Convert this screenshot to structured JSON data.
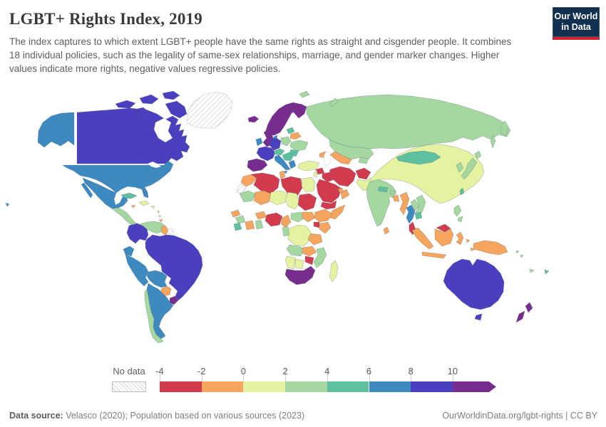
{
  "header": {
    "title": "LGBT+ Rights Index, 2019",
    "subtitle": "The index captures to which extent LGBT+ people have the same rights as straight and cisgender people. It combines 18 individual policies, such as the legality of same-sex relationships, marriage, and gender marker changes. Higher values indicate more rights, negative values regressive policies."
  },
  "logo": {
    "line1": "Our World",
    "line2": "in Data",
    "bg_color": "#12304f",
    "bar_color": "#d0232a"
  },
  "footer": {
    "source_label": "Data source:",
    "source_text": " Velasco (2020); Population based on various sources (2023)",
    "right_text": "OurWorldinData.org/lgbt-rights | CC BY"
  },
  "chart_data": {
    "type": "heatmap",
    "subtype": "world-choropleth",
    "title": "LGBT+ Rights Index, 2019",
    "year": "2019",
    "legend": {
      "no_data_label": "No data",
      "tick_labels": [
        "-4",
        "-2",
        "0",
        "2",
        "4",
        "6",
        "8",
        "10"
      ],
      "tick_spacing_px": 58.7,
      "bins": [
        {
          "id": "n4_n2",
          "range": "-4 to -2",
          "color": "#d23b4e"
        },
        {
          "id": "n2_0",
          "range": "-2 to 0",
          "color": "#f6a55e"
        },
        {
          "id": "p0_2",
          "range": "0 to 2",
          "color": "#e5f3a1"
        },
        {
          "id": "p2_4",
          "range": "2 to 4",
          "color": "#a5d7a0"
        },
        {
          "id": "p4_6",
          "range": "4 to 6",
          "color": "#5fc0a1"
        },
        {
          "id": "p6_8",
          "range": "6 to 8",
          "color": "#3d8ac0"
        },
        {
          "id": "p8_10",
          "range": "8 to 10",
          "color": "#4a3fbe"
        },
        {
          "id": "p10",
          "range": "10+",
          "color": "#762d8e"
        }
      ],
      "no_data_hatch_color": "#d6d6d6"
    },
    "regions": {
      "canada": "p8_10",
      "united-states": "p6_8",
      "greenland": "no_data",
      "mexico": "p6_8",
      "central-america": "p2_4",
      "panama": "p0_2",
      "cuba": "p4_6",
      "hispaniola": "p0_2",
      "jamaica": "n2_0",
      "puerto-rico": "p0_2",
      "lesser-antilles": "p0_2",
      "trinidad": "n2_0",
      "colombia": "p8_10",
      "venezuela": "p2_4",
      "guyana": "n2_0",
      "suriname": "no_data",
      "ecuador": "p6_8",
      "peru": "p6_8",
      "brazil": "p8_10",
      "bolivia": "p6_8",
      "paraguay": "n2_0",
      "uruguay": "p10",
      "argentina": "p6_8",
      "chile": "p2_4",
      "iceland": "p10",
      "united-kingdom": "p10",
      "ireland": "p6_8",
      "norway-sweden": "p10",
      "finland": "p10",
      "denmark": "p6_8",
      "germany-benelux": "p8_10",
      "france": "p8_10",
      "spain-portugal": "p10",
      "poland": "p2_4",
      "belarus": "n2_0",
      "baltics": "p4_6",
      "ukraine": "p2_4",
      "czechia-austria": "p4_6",
      "balkans": "p4_6",
      "romania": "p4_6",
      "italy": "p6_8",
      "greece": "p6_8",
      "svalbard": "p2_4",
      "russia": "p2_4",
      "kazakhstan": "p2_4",
      "turkmenistan-uzbekistan": "n2_0",
      "kyrgyzstan-tajikistan": "p2_4",
      "caucasus": "n2_0",
      "turkey": "p0_2",
      "syria": "n4_n2",
      "levant": "p0_2",
      "iraq": "n4_n2",
      "iran": "n4_n2",
      "afghanistan": "n4_n2",
      "pakistan": "p0_2",
      "saudi-arabia": "n4_n2",
      "yemen": "n4_n2",
      "oman": "n2_0",
      "uae": "n2_0",
      "morocco": "n2_0",
      "western-sahara": "no_data",
      "algeria": "n4_n2",
      "tunisia": "n2_0",
      "libya": "n4_n2",
      "egypt": "p0_2",
      "mauritania": "p2_4",
      "mali": "n2_0",
      "niger": "p0_2",
      "chad": "p0_2",
      "sudan": "n4_n2",
      "senegal": "n2_0",
      "guinea": "p2_4",
      "sierra-leone-liberia": "p4_6",
      "ivory-coast": "n2_0",
      "ghana": "p2_4",
      "burkina-faso": "n2_0",
      "nigeria": "n4_n2",
      "cameroon": "n2_0",
      "central-african-republic": "p2_4",
      "south-sudan": "n2_0",
      "ethiopia": "n2_0",
      "somalia": "n2_0",
      "kenya": "n2_0",
      "uganda": "n4_n2",
      "dr-congo": "p0_2",
      "gabon-congo": "p2_4",
      "tanzania": "n2_0",
      "angola": "p2_4",
      "zambia": "n2_0",
      "zimbabwe": "n4_n2",
      "mozambique": "p2_4",
      "namibia": "p0_2",
      "botswana": "p0_2",
      "south-africa": "p10",
      "madagascar": "p0_2",
      "india": "p2_4",
      "sri-lanka": "n2_0",
      "nepal": "p4_6",
      "bhutan": "p2_4",
      "bangladesh": "n2_0",
      "myanmar": "n2_0",
      "thailand": "p6_8",
      "laos": "p2_4",
      "vietnam": "p2_4",
      "cambodia": "p4_6",
      "malaysia": "n4_n2",
      "china": "p0_2",
      "mongolia": "p4_6",
      "korea": "p2_4",
      "japan": "p2_4",
      "taiwan": "p4_6",
      "philippines": "p2_4",
      "indonesia": "n2_0",
      "papua-new-guinea": "n2_0",
      "solomon-islands": "p2_4",
      "australia": "p8_10",
      "new-zealand": "p10",
      "fiji": "p4_6",
      "new-caledonia": "p2_4",
      "hawaii": "p6_8"
    }
  }
}
